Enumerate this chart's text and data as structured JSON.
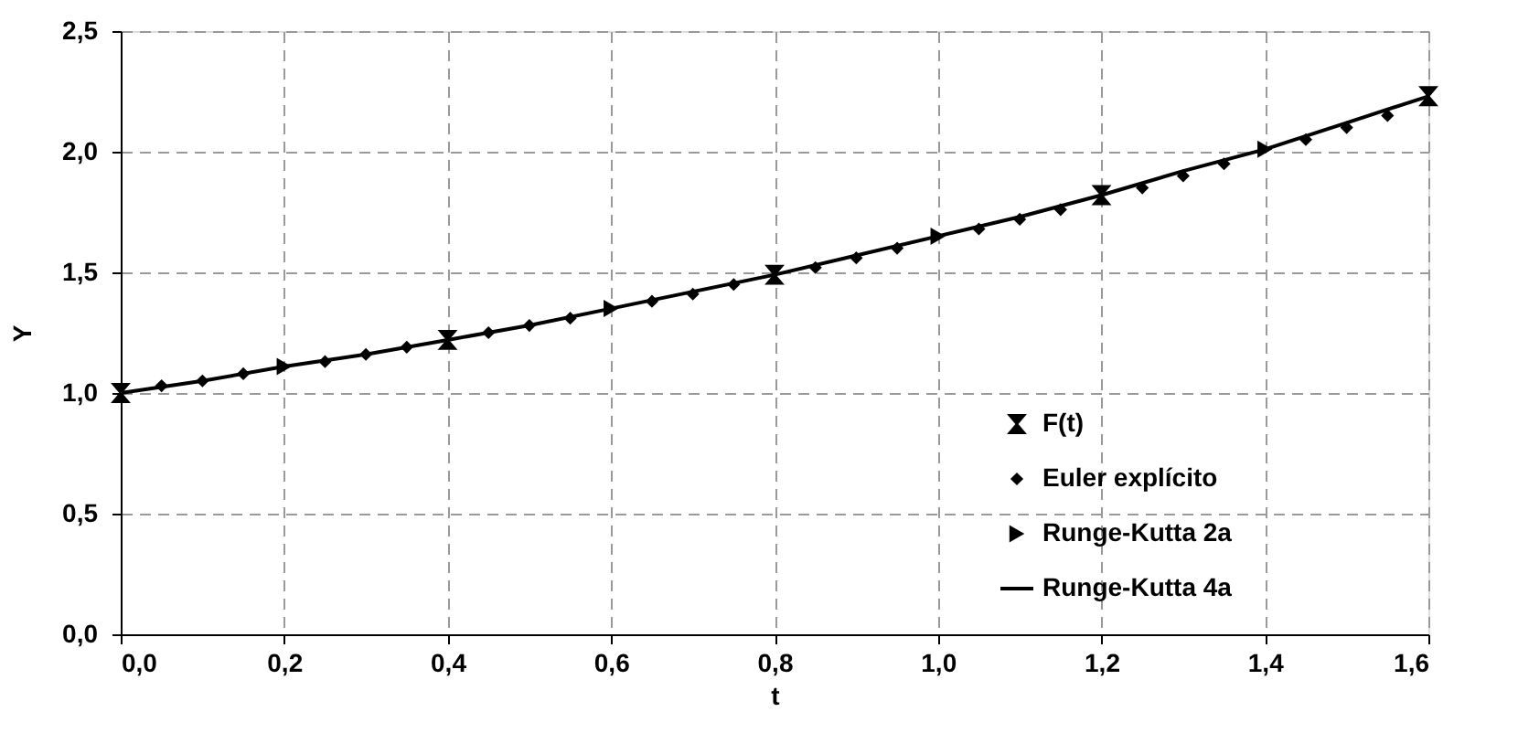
{
  "chart_data": {
    "type": "line",
    "xlabel": "t",
    "ylabel": "Y",
    "xlim": [
      0,
      1.6
    ],
    "ylim": [
      0,
      2.5
    ],
    "xticks": [
      {
        "value": 0,
        "label": "0,0"
      },
      {
        "value": 0.2,
        "label": "0,2"
      },
      {
        "value": 0.4,
        "label": "0,4"
      },
      {
        "value": 0.6,
        "label": "0,6"
      },
      {
        "value": 0.8,
        "label": "0,8"
      },
      {
        "value": 1.0,
        "label": "1,0"
      },
      {
        "value": 1.2,
        "label": "1,2"
      },
      {
        "value": 1.4,
        "label": "1,4"
      },
      {
        "value": 1.6,
        "label": "1,6"
      }
    ],
    "yticks": [
      {
        "value": 0,
        "label": "0,0"
      },
      {
        "value": 0.5,
        "label": "0,5"
      },
      {
        "value": 1.0,
        "label": "1,0"
      },
      {
        "value": 1.5,
        "label": "1,5"
      },
      {
        "value": 2.0,
        "label": "2,0"
      },
      {
        "value": 2.5,
        "label": "2,5"
      }
    ],
    "grid": true,
    "legend": "right",
    "series": [
      {
        "name": "F(t)",
        "type": "scatter",
        "color": "#000000",
        "x": [
          0,
          0.4,
          0.8,
          1.2,
          1.6
        ],
        "values": [
          1.0,
          1.22,
          1.49,
          1.82,
          2.23
        ]
      },
      {
        "name": "Euler explícito",
        "type": "scatter",
        "marker": "diamond",
        "color": "#000000",
        "x": [
          0.05,
          0.1,
          0.15,
          0.25,
          0.3,
          0.35,
          0.45,
          0.5,
          0.55,
          0.65,
          0.7,
          0.75,
          0.85,
          0.9,
          0.95,
          1.05,
          1.1,
          1.15,
          1.25,
          1.3,
          1.35,
          1.45,
          1.5,
          1.55
        ],
        "values": [
          1.03,
          1.05,
          1.08,
          1.13,
          1.16,
          1.19,
          1.25,
          1.28,
          1.31,
          1.38,
          1.41,
          1.45,
          1.52,
          1.56,
          1.6,
          1.68,
          1.72,
          1.76,
          1.85,
          1.9,
          1.95,
          2.05,
          2.1,
          2.15
        ]
      },
      {
        "name": "Runge-Kutta 2a",
        "type": "scatter",
        "marker": "triangle",
        "color": "#000000",
        "x": [
          0.2,
          0.6,
          1.0,
          1.4
        ],
        "values": [
          1.11,
          1.35,
          1.65,
          2.01
        ]
      },
      {
        "name": "Runge-Kutta 4a",
        "line_style": "solid",
        "color": "#000000",
        "x": [
          0,
          0.1,
          0.2,
          0.3,
          0.4,
          0.5,
          0.6,
          0.7,
          0.8,
          0.9,
          1.0,
          1.1,
          1.2,
          1.3,
          1.4,
          1.5,
          1.6
        ],
        "values": [
          1.0,
          1.05,
          1.11,
          1.16,
          1.22,
          1.28,
          1.35,
          1.42,
          1.49,
          1.57,
          1.65,
          1.73,
          1.82,
          1.92,
          2.01,
          2.12,
          2.23
        ]
      }
    ]
  }
}
